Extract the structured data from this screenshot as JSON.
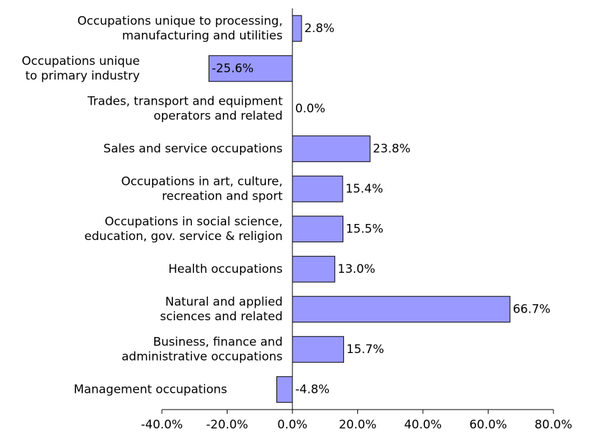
{
  "chart_data": {
    "type": "hbar",
    "categories": [
      "Occupations unique to processing,\nmanufacturing and utilities",
      "Occupations unique\nto primary industry",
      "Trades, transport and equipment\noperators and related",
      "Sales and service occupations",
      "Occupations in art, culture,\nrecreation and sport",
      "Occupations in social science,\neducation, gov. service & religion",
      "Health occupations",
      "Natural and applied\nsciences and related",
      "Business, finance and\nadministrative occupations",
      "Management occupations"
    ],
    "values": [
      2.8,
      -25.6,
      0.0,
      23.8,
      15.4,
      15.5,
      13.0,
      66.7,
      15.7,
      -4.8
    ],
    "value_labels": [
      "2.8%",
      "-25.6%",
      "0.0%",
      "23.8%",
      "15.4%",
      "15.5%",
      "13.0%",
      "66.7%",
      "15.7%",
      "-4.8%"
    ],
    "color": "#9999ff",
    "xlim": [
      -40,
      80
    ],
    "xticks": [
      {
        "value": -40,
        "label": "-40.0%"
      },
      {
        "value": -20,
        "label": "-20.0%"
      },
      {
        "value": 0,
        "label": "0.0%"
      },
      {
        "value": 20,
        "label": "20.0%"
      },
      {
        "value": 40,
        "label": "40.0%"
      },
      {
        "value": 60,
        "label": "60.0%"
      },
      {
        "value": 80,
        "label": "80.0%"
      }
    ],
    "grid": false
  }
}
